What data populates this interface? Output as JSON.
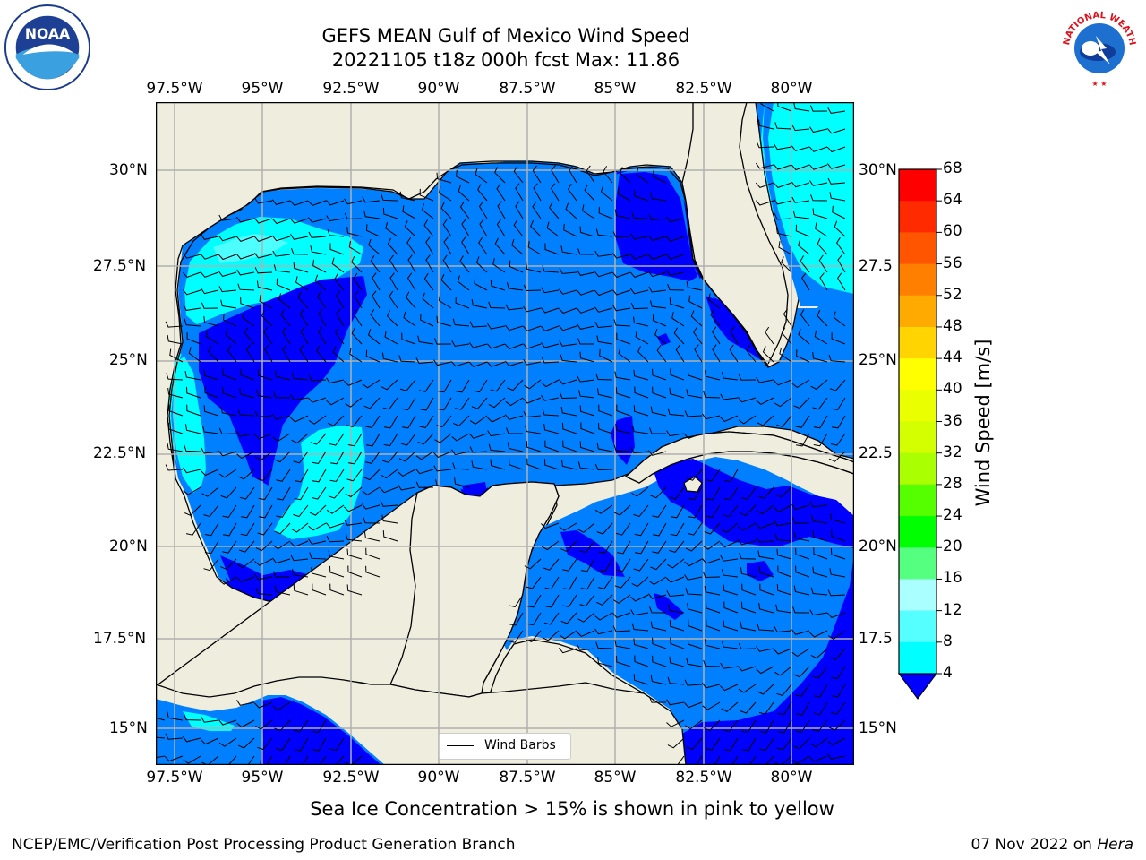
{
  "header": {
    "title_line1": "GEFS MEAN Gulf of Mexico Wind Speed",
    "title_line2": "20221105 t18z 000h fcst   Max: 11.86"
  },
  "map": {
    "lon_labels": [
      "97.5°W",
      "95°W",
      "92.5°W",
      "90°W",
      "87.5°W",
      "85°W",
      "82.5°W",
      "80°W"
    ],
    "lat_labels_left": [
      "30°N",
      "27.5°N",
      "25°N",
      "22.5°N",
      "20°N",
      "17.5°N",
      "15°N"
    ],
    "lat_labels_right": [
      "30°N",
      "27.5",
      "25°N",
      "22.5",
      "20°N",
      "17.5",
      "15°N"
    ],
    "legend_label": "Wind Barbs",
    "colors": {
      "land": "#efedde",
      "band_4_8": "#0080ff",
      "band_below_4": "#0000ff",
      "band_8_12": "#00ffff",
      "band_12_16": "#4dffff",
      "grid": "#b0b0b0"
    }
  },
  "colorbar": {
    "label": "Wind Speed [m/s]",
    "ticks": [
      "68",
      "64",
      "60",
      "56",
      "52",
      "48",
      "44",
      "40",
      "36",
      "32",
      "28",
      "24",
      "20",
      "16",
      "12",
      "8",
      "4"
    ],
    "colors": [
      "#ff0000",
      "#ff2a00",
      "#ff5500",
      "#ff8000",
      "#ffaa00",
      "#ffd400",
      "#ffff00",
      "#eaff00",
      "#d4ff00",
      "#aaff00",
      "#55ff00",
      "#00ff00",
      "#55ff80",
      "#aaffff",
      "#55ffff",
      "#00ffff",
      "#0080ff"
    ],
    "below_color": "#0000ff"
  },
  "footer": {
    "note": "Sea Ice Concentration > 15% is shown in pink to yellow",
    "credit": "NCEP/EMC/Verification Post Processing Product Generation Branch",
    "date": "07 Nov 2022 on",
    "host": "Hera"
  },
  "logos": {
    "noaa_text": "NOAA",
    "nws_text": "NATIONAL WEATHER SERVICE"
  }
}
